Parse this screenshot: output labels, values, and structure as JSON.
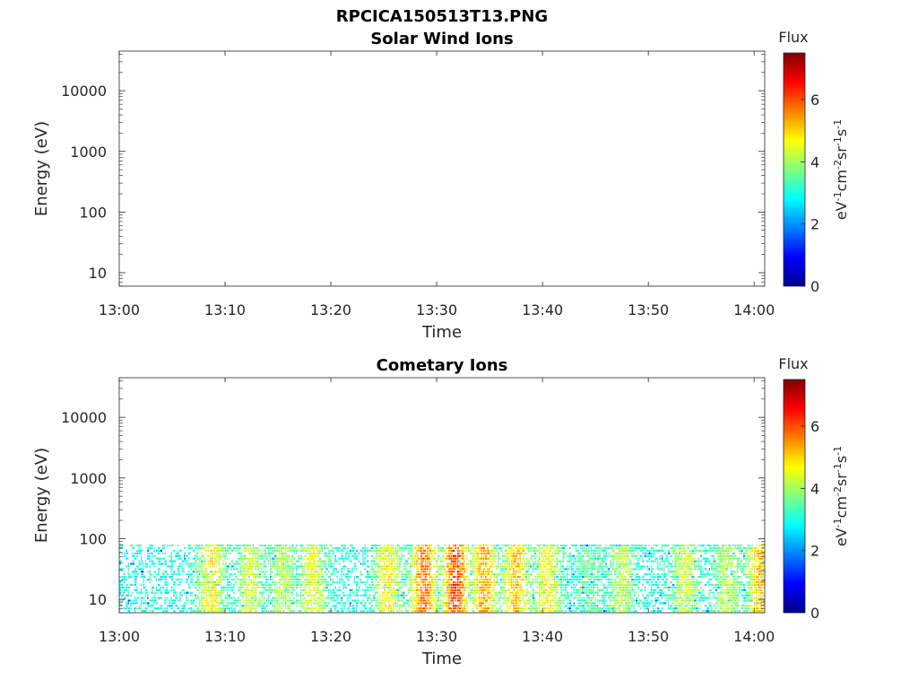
{
  "figure": {
    "title_line1": "RPCICA150513T13.PNG"
  },
  "colors": {
    "axis": "#262626",
    "background": "#ffffff",
    "colormap": [
      "#00008f",
      "#0000ff",
      "#0080ff",
      "#00ffff",
      "#80ff80",
      "#ffff00",
      "#ff8000",
      "#ff0000",
      "#800000"
    ]
  },
  "chart_data": [
    {
      "type": "heatmap",
      "title": "Solar Wind Ions",
      "xlabel": "Time",
      "ylabel": "Energy (eV)",
      "xticks": [
        "13:00",
        "13:10",
        "13:20",
        "13:30",
        "13:40",
        "13:50",
        "14:00"
      ],
      "x_range_minutes": [
        0,
        61
      ],
      "yscale": "log",
      "ylim": [
        6,
        45000
      ],
      "yticks": [
        "10",
        "100",
        "1000",
        "10000"
      ],
      "colorbar": {
        "title": "Flux",
        "label": "eV-1cm-2sr-1s-1",
        "ticks": [
          "0",
          "2",
          "4",
          "6"
        ],
        "range": [
          0,
          7.5
        ]
      },
      "data_present": false,
      "events": []
    },
    {
      "type": "heatmap",
      "title": "Cometary Ions",
      "xlabel": "Time",
      "ylabel": "Energy (eV)",
      "xticks": [
        "13:00",
        "13:10",
        "13:20",
        "13:30",
        "13:40",
        "13:50",
        "14:00"
      ],
      "x_range_minutes": [
        0,
        61
      ],
      "yscale": "log",
      "ylim": [
        6,
        45000
      ],
      "yticks": [
        "10",
        "100",
        "1000",
        "10000"
      ],
      "colorbar": {
        "title": "Flux",
        "label": "eV-1cm-2sr-1s-1",
        "ticks": [
          "0",
          "2",
          "4",
          "6"
        ],
        "range": [
          0,
          7.5
        ]
      },
      "data_present": true,
      "energy_upper_cutoff_eV": 80,
      "events": [
        {
          "time_min": 8.8,
          "flux": 5.2
        },
        {
          "time_min": 12.4,
          "flux": 4.8
        },
        {
          "time_min": 15.5,
          "flux": 4.6
        },
        {
          "time_min": 18.3,
          "flux": 5.0
        },
        {
          "time_min": 25.4,
          "flux": 5.2
        },
        {
          "time_min": 28.8,
          "flux": 6.2
        },
        {
          "time_min": 31.8,
          "flux": 6.6
        },
        {
          "time_min": 34.5,
          "flux": 5.8
        },
        {
          "time_min": 37.5,
          "flux": 5.6
        },
        {
          "time_min": 40.5,
          "flux": 5.2
        },
        {
          "time_min": 44.5,
          "flux": 4.0
        },
        {
          "time_min": 47.5,
          "flux": 4.6
        },
        {
          "time_min": 53.5,
          "flux": 4.8
        },
        {
          "time_min": 57.5,
          "flux": 4.6
        },
        {
          "time_min": 60.6,
          "flux": 5.6
        }
      ]
    }
  ]
}
